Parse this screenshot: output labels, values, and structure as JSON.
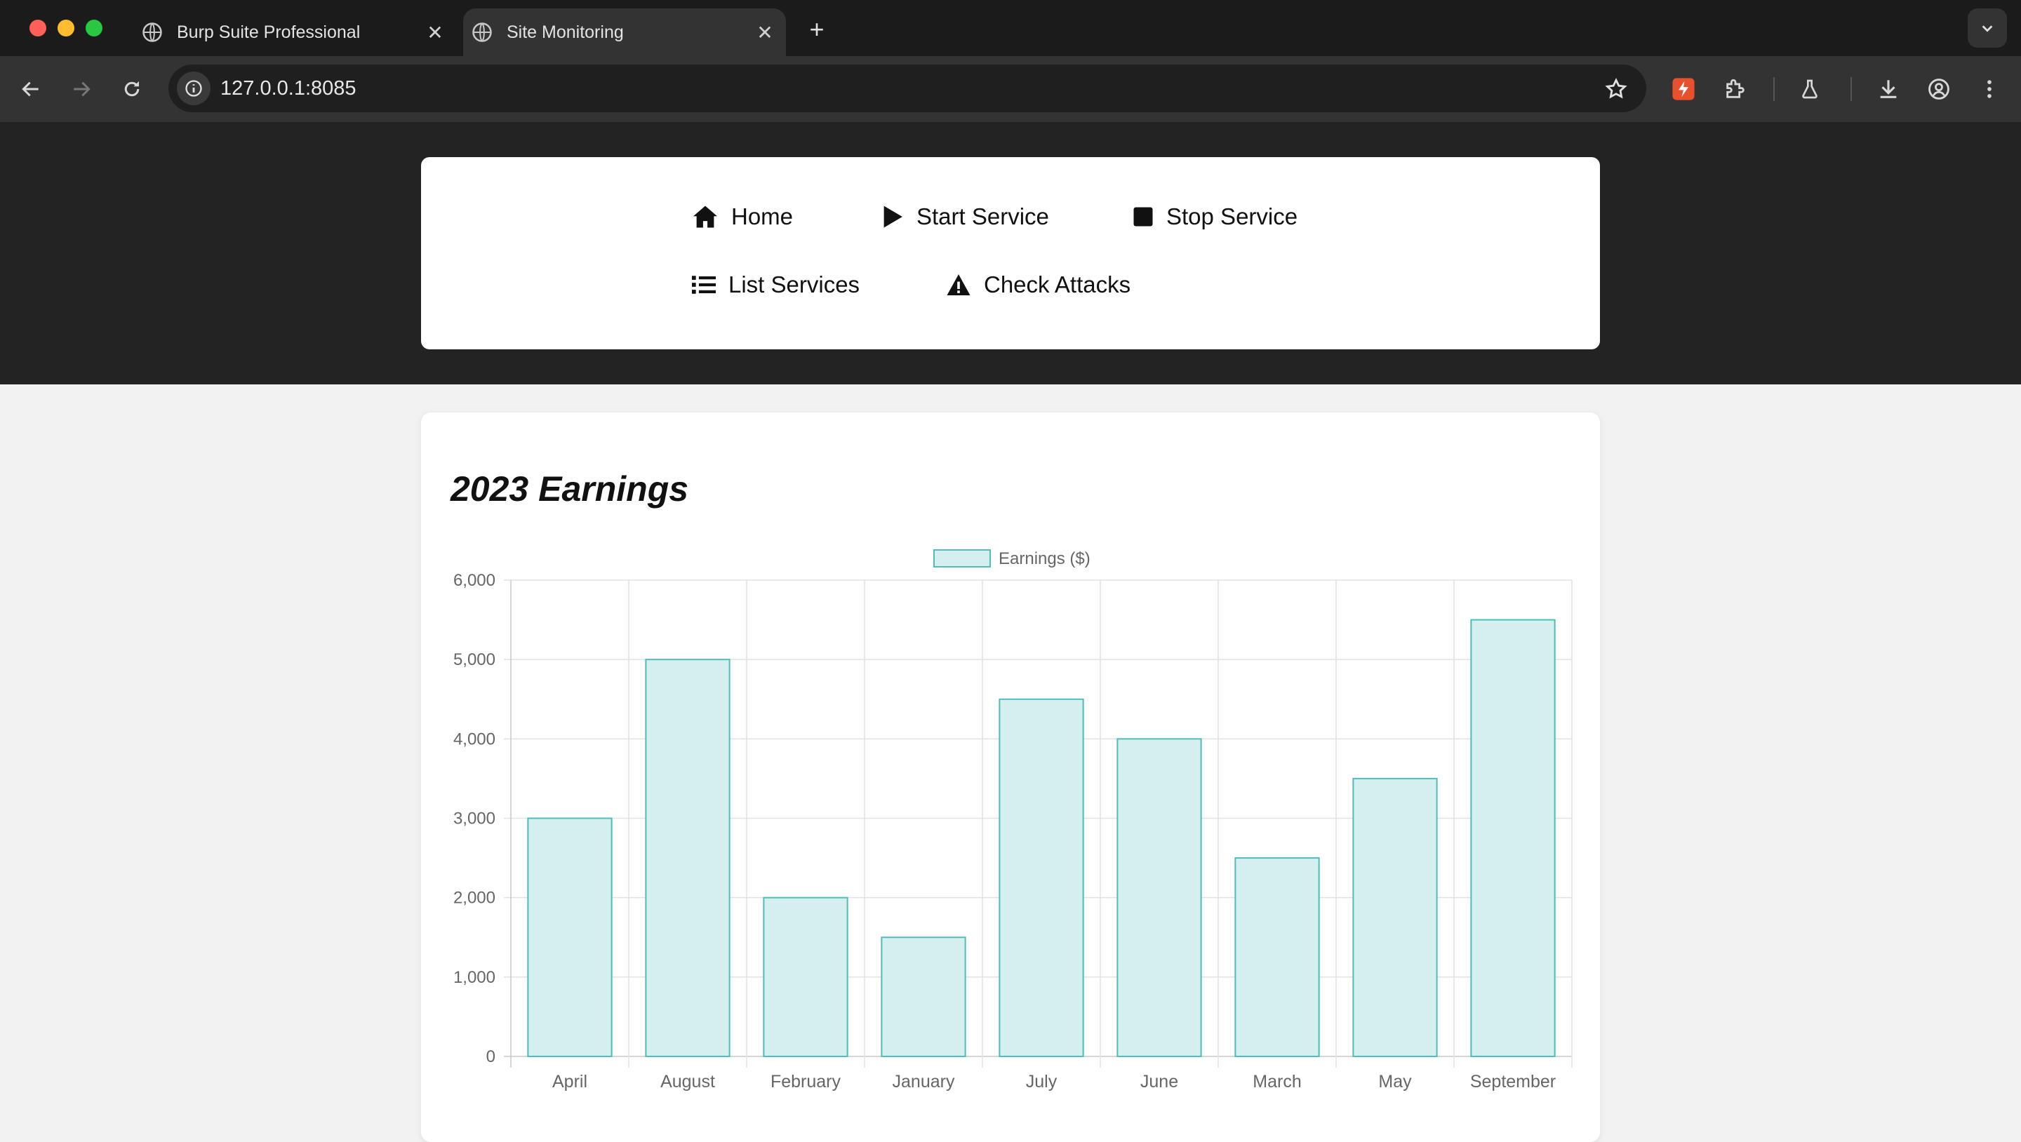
{
  "browser": {
    "tabs": [
      {
        "title": "Burp Suite Professional",
        "active": false
      },
      {
        "title": "Site Monitoring",
        "active": true
      }
    ],
    "url": "127.0.0.1:8085"
  },
  "nav": {
    "home": "Home",
    "start_service": "Start Service",
    "stop_service": "Stop Service",
    "list_services": "List Services",
    "check_attacks": "Check Attacks"
  },
  "chart_data": {
    "type": "bar",
    "title": "2023 Earnings",
    "legend": "Earnings ($)",
    "legend_position": "top",
    "categories": [
      "April",
      "August",
      "February",
      "January",
      "July",
      "June",
      "March",
      "May",
      "September"
    ],
    "series": [
      {
        "name": "Earnings ($)",
        "values": [
          3000,
          5000,
          2000,
          1500,
          4500,
          4000,
          2500,
          3500,
          5500
        ]
      }
    ],
    "ylim": [
      0,
      6000
    ],
    "yticks": [
      "0",
      "1,000",
      "2,000",
      "3,000",
      "4,000",
      "5,000",
      "6,000"
    ],
    "grid": true,
    "colors": {
      "fill": "#d4efee",
      "stroke": "#4fbdba"
    }
  }
}
